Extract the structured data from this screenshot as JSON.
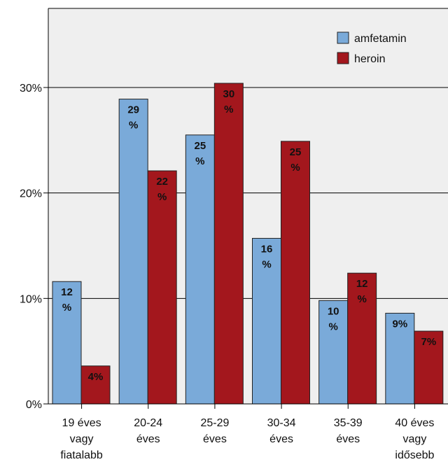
{
  "chart_data": {
    "type": "bar",
    "categories": [
      [
        "19 éves",
        "vagy",
        "fiatalabb"
      ],
      [
        "20-24",
        "éves"
      ],
      [
        "25-29",
        "éves"
      ],
      [
        "30-34",
        "éves"
      ],
      [
        "35-39",
        "éves"
      ],
      [
        "40 éves",
        "vagy",
        "idősebb"
      ]
    ],
    "series": [
      {
        "name": "amfetamin",
        "color": "#7aaad9",
        "values": [
          11.6,
          28.9,
          25.5,
          15.7,
          9.8,
          8.6
        ],
        "labels": [
          [
            "12",
            "%"
          ],
          [
            "29",
            "%"
          ],
          [
            "25",
            "%"
          ],
          [
            "16",
            "%"
          ],
          [
            "10",
            "%"
          ],
          [
            "9%"
          ]
        ]
      },
      {
        "name": "heroin",
        "color": "#a3171d",
        "values": [
          3.6,
          22.1,
          30.4,
          24.9,
          12.4,
          6.9
        ],
        "labels": [
          [
            "4%"
          ],
          [
            "22",
            "%"
          ],
          [
            "30",
            "%"
          ],
          [
            "25",
            "%"
          ],
          [
            "12",
            "%"
          ],
          [
            "7%"
          ]
        ]
      }
    ],
    "yticks": [
      "0%",
      "10%",
      "20%",
      "30%"
    ],
    "ytick_values": [
      0,
      10,
      20,
      30
    ],
    "ylim": [
      0,
      37.5
    ],
    "title": "",
    "xlabel": "",
    "ylabel": "",
    "grid": true,
    "legend": "top-right",
    "plot_background": "#efefef"
  }
}
